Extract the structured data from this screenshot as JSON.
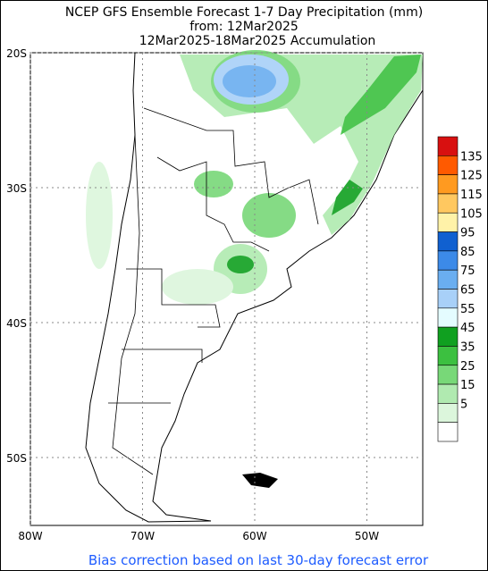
{
  "header": {
    "title": "NCEP GFS Ensemble Forecast 1-7 Day Precipitation (mm)",
    "subtitle": "from: 12Mar2025",
    "period": "12Mar2025-18Mar2025 Accumulation"
  },
  "map": {
    "lat_labels": [
      "20S",
      "30S",
      "40S",
      "50S"
    ],
    "lon_labels": [
      "80W",
      "70W",
      "60W",
      "50W"
    ]
  },
  "colorbar": {
    "levels": [
      135,
      125,
      115,
      105,
      95,
      85,
      75,
      65,
      55,
      45,
      35,
      25,
      15,
      5
    ],
    "colors": [
      "#d81010",
      "#ff5a00",
      "#ff9a20",
      "#ffc860",
      "#fff2a8",
      "#1060d0",
      "#3c8ae8",
      "#6aaef0",
      "#a8d0f8",
      "#e4fcff",
      "#10a020",
      "#3cc040",
      "#78d878",
      "#b0eab0",
      "#dcf6dc",
      "#ffffff"
    ]
  },
  "footer": "Bias correction based on last 30-day forecast error"
}
